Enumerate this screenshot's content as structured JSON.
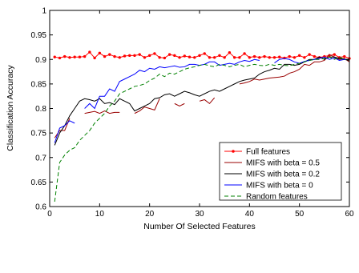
{
  "chart_data": {
    "type": "line",
    "title": "",
    "xlabel": "Number Of Selected Features",
    "ylabel": "Classification Accuracy",
    "xlim": [
      0,
      60
    ],
    "ylim": [
      0.6,
      1.0
    ],
    "xticks": [
      0,
      10,
      20,
      30,
      40,
      50,
      60
    ],
    "xtick_labels": [
      "0",
      "10",
      "20",
      "30",
      "40",
      "50",
      "60"
    ],
    "yticks": [
      0.6,
      0.65,
      0.7,
      0.75,
      0.8,
      0.85,
      0.9,
      0.95,
      1.0
    ],
    "ytick_labels": [
      "0.6",
      "0.65",
      "0.7",
      "0.75",
      "0.8",
      "0.85",
      "0.9",
      "0.95",
      "1"
    ],
    "grid": false,
    "legend_position": "bottom-right",
    "series": [
      {
        "name": "Full features",
        "color": "#ff0000",
        "style": "solid",
        "marker": "dot",
        "x": [
          1,
          2,
          3,
          4,
          5,
          6,
          7,
          8,
          9,
          10,
          11,
          12,
          13,
          14,
          15,
          16,
          17,
          18,
          19,
          20,
          21,
          22,
          23,
          24,
          25,
          26,
          27,
          28,
          29,
          30,
          31,
          32,
          33,
          34,
          35,
          36,
          37,
          38,
          39,
          40,
          41,
          42,
          43,
          44,
          45,
          46,
          47,
          48,
          49,
          50,
          51,
          52,
          53,
          54,
          55,
          56,
          57,
          58,
          59,
          60
        ],
        "y": [
          0.905,
          0.903,
          0.906,
          0.904,
          0.905,
          0.905,
          0.906,
          0.915,
          0.903,
          0.913,
          0.906,
          0.91,
          0.906,
          0.904,
          0.907,
          0.908,
          0.908,
          0.91,
          0.904,
          0.908,
          0.912,
          0.904,
          0.903,
          0.91,
          0.908,
          0.904,
          0.907,
          0.905,
          0.904,
          0.908,
          0.912,
          0.904,
          0.904,
          0.908,
          0.904,
          0.914,
          0.904,
          0.904,
          0.912,
          0.904,
          0.906,
          0.904,
          0.906,
          0.904,
          0.904,
          0.905,
          0.903,
          0.906,
          0.904,
          0.908,
          0.904,
          0.91,
          0.906,
          0.904,
          0.906,
          0.908,
          0.91,
          0.904,
          0.906,
          0.902
        ]
      },
      {
        "name": "MIFS with beta = 0.5",
        "color": "#990000",
        "style": "solid",
        "marker": "none",
        "x": [
          1,
          2,
          3,
          4,
          null,
          7,
          8,
          9,
          10,
          11,
          12,
          13,
          14,
          null,
          17,
          18,
          19,
          20,
          21,
          22,
          null,
          25,
          26,
          27,
          null,
          30,
          31,
          32,
          33,
          null,
          38,
          39,
          40,
          41,
          42,
          43,
          44,
          45,
          46,
          47,
          48,
          49,
          50,
          51,
          52,
          53,
          54,
          55,
          56,
          57,
          58,
          59,
          60
        ],
        "y": [
          0.74,
          0.755,
          0.755,
          0.78,
          null,
          0.79,
          0.792,
          0.794,
          0.79,
          0.795,
          0.79,
          0.792,
          0.792,
          null,
          0.79,
          0.795,
          0.803,
          0.8,
          0.797,
          0.82,
          null,
          0.81,
          0.805,
          0.81,
          null,
          0.815,
          0.818,
          0.81,
          0.822,
          null,
          0.85,
          0.852,
          0.855,
          0.86,
          0.858,
          0.86,
          0.862,
          0.863,
          0.864,
          0.866,
          0.872,
          0.875,
          0.88,
          0.89,
          0.888,
          0.895,
          0.895,
          0.898,
          0.91,
          0.905,
          0.9,
          0.902,
          0.895
        ]
      },
      {
        "name": "MIFS with beta = 0.2",
        "color": "#000000",
        "style": "solid",
        "marker": "none",
        "x": [
          1,
          2,
          3,
          4,
          5,
          6,
          7,
          8,
          9,
          10,
          11,
          12,
          13,
          14,
          15,
          16,
          17,
          18,
          19,
          20,
          21,
          22,
          23,
          24,
          25,
          26,
          27,
          28,
          29,
          30,
          31,
          32,
          33,
          34,
          35,
          36,
          37,
          38,
          39,
          40,
          41,
          42,
          43,
          44,
          45,
          46,
          47,
          48,
          49,
          50,
          51,
          52,
          53,
          54,
          55,
          56,
          57,
          58,
          59,
          60
        ],
        "y": [
          0.725,
          0.75,
          0.765,
          0.785,
          0.8,
          0.815,
          0.82,
          0.818,
          0.815,
          0.82,
          0.81,
          0.812,
          0.808,
          0.82,
          0.815,
          0.81,
          0.795,
          0.8,
          0.805,
          0.81,
          0.82,
          0.822,
          0.828,
          0.83,
          0.825,
          0.83,
          0.835,
          0.832,
          0.828,
          0.825,
          0.83,
          0.835,
          0.838,
          0.835,
          0.84,
          0.845,
          0.85,
          0.855,
          0.858,
          0.86,
          0.862,
          0.87,
          0.875,
          0.878,
          0.882,
          0.88,
          0.89,
          0.89,
          0.888,
          0.89,
          0.895,
          0.9,
          0.9,
          0.905,
          0.9,
          0.905,
          0.905,
          0.902,
          0.9,
          0.898
        ]
      },
      {
        "name": "MIFS with beta = 0",
        "color": "#0000ff",
        "style": "solid",
        "marker": "none",
        "x": [
          1,
          2,
          3,
          4,
          5,
          null,
          7,
          8,
          9,
          10,
          11,
          12,
          13,
          14,
          15,
          16,
          17,
          18,
          19,
          20,
          21,
          22,
          23,
          24,
          25,
          26,
          27,
          28,
          29,
          30,
          31,
          32,
          33,
          34,
          35,
          36,
          37,
          38,
          39,
          40,
          41,
          42,
          null,
          45,
          46,
          47,
          48,
          49,
          50,
          51,
          52,
          53,
          54,
          55,
          56,
          57,
          58,
          59,
          60
        ],
        "y": [
          0.73,
          0.76,
          0.765,
          0.775,
          0.77,
          null,
          0.8,
          0.81,
          0.8,
          0.825,
          0.825,
          0.84,
          0.835,
          0.855,
          0.86,
          0.865,
          0.87,
          0.878,
          0.875,
          0.882,
          0.88,
          0.885,
          0.883,
          0.885,
          0.887,
          0.884,
          0.885,
          0.89,
          0.89,
          0.888,
          0.89,
          0.895,
          0.895,
          0.888,
          0.89,
          0.892,
          0.89,
          0.895,
          0.898,
          0.896,
          0.9,
          0.898,
          null,
          0.893,
          0.9,
          0.902,
          0.9,
          0.895,
          0.892,
          0.896,
          0.898,
          0.9,
          0.902,
          0.905,
          0.9,
          0.903,
          0.898,
          0.9,
          0.9
        ]
      },
      {
        "name": "Random features",
        "color": "#008000",
        "style": "dashed",
        "marker": "none",
        "x": [
          1,
          2,
          3,
          4,
          5,
          6,
          7,
          8,
          9,
          10,
          11,
          12,
          13,
          14,
          15,
          16,
          17,
          18,
          19,
          20,
          21,
          22,
          23,
          24,
          25,
          26,
          27,
          28,
          29,
          30,
          31,
          32,
          33,
          34,
          35,
          36,
          37,
          38,
          39,
          40,
          41,
          42,
          43,
          44,
          45,
          46,
          47,
          48,
          49,
          50,
          51,
          52,
          53,
          54,
          55,
          56,
          57,
          58,
          59,
          60
        ],
        "y": [
          0.61,
          0.69,
          0.705,
          0.715,
          0.72,
          0.735,
          0.745,
          0.755,
          0.77,
          0.78,
          0.79,
          0.805,
          0.815,
          0.83,
          0.835,
          0.84,
          0.845,
          0.847,
          0.85,
          0.857,
          0.862,
          0.87,
          0.865,
          0.872,
          0.87,
          0.875,
          0.88,
          0.883,
          0.885,
          0.888,
          0.89,
          0.887,
          0.885,
          0.89,
          0.888,
          0.885,
          0.888,
          0.89,
          0.885,
          0.888,
          0.89,
          0.888,
          0.887,
          0.89,
          0.888,
          0.89,
          0.888,
          0.887,
          0.89,
          0.892,
          0.895,
          0.898,
          0.9,
          0.9,
          0.902,
          0.905,
          0.9,
          0.905,
          0.9,
          0.9
        ]
      }
    ]
  }
}
